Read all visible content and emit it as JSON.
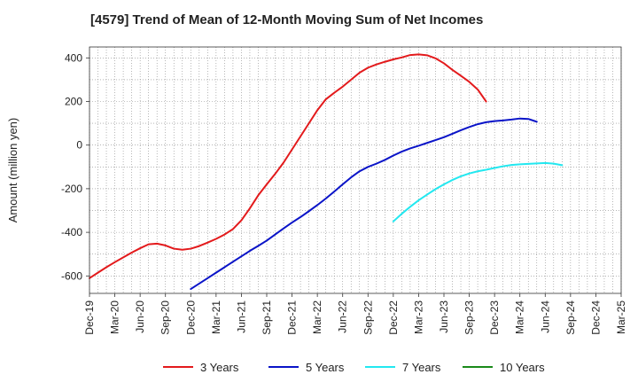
{
  "chart_data": {
    "type": "line",
    "title": "[4579]  Trend of Mean of 12-Month Moving Sum of Net Incomes",
    "xlabel": "",
    "ylabel": "Amount (million yen)",
    "ylim": [
      -680,
      450
    ],
    "yticks": [
      400,
      200,
      0,
      -200,
      -400,
      -600
    ],
    "xtick_labels": [
      "Dec-19",
      "Mar-20",
      "Jun-20",
      "Sep-20",
      "Dec-20",
      "Mar-21",
      "Jun-21",
      "Sep-21",
      "Dec-21",
      "Mar-22",
      "Jun-22",
      "Sep-22",
      "Dec-22",
      "Mar-23",
      "Jun-23",
      "Sep-23",
      "Dec-23",
      "Mar-24",
      "Jun-24",
      "Sep-24",
      "Dec-24",
      "Mar-25"
    ],
    "grid": true,
    "legend_position": "bottom",
    "series": [
      {
        "name": "3 Years",
        "color": "#e31a1c",
        "start_index": 0,
        "values": [
          -610,
          -585,
          -560,
          -537,
          -515,
          -493,
          -473,
          -455,
          -452,
          -460,
          -475,
          -480,
          -475,
          -463,
          -447,
          -430,
          -410,
          -385,
          -345,
          -290,
          -230,
          -180,
          -132,
          -80,
          -20,
          40,
          100,
          160,
          210,
          240,
          268,
          300,
          332,
          355,
          370,
          382,
          393,
          402,
          413,
          416,
          412,
          398,
          375,
          345,
          318,
          290,
          255,
          200
        ]
      },
      {
        "name": "5 Years",
        "color": "#0a14c8",
        "start_index": 12,
        "values": [
          -660,
          -635,
          -610,
          -585,
          -560,
          -535,
          -510,
          -485,
          -462,
          -438,
          -410,
          -382,
          -355,
          -330,
          -303,
          -275,
          -245,
          -213,
          -180,
          -148,
          -120,
          -100,
          -85,
          -68,
          -48,
          -30,
          -15,
          -3,
          10,
          23,
          36,
          52,
          68,
          83,
          96,
          105,
          110,
          113,
          117,
          122,
          120,
          107
        ]
      },
      {
        "name": "7 Years",
        "color": "#22e8f0",
        "start_index": 36,
        "values": [
          -350,
          -315,
          -283,
          -253,
          -227,
          -202,
          -180,
          -160,
          -143,
          -130,
          -120,
          -113,
          -105,
          -97,
          -91,
          -88,
          -86,
          -84,
          -82,
          -85,
          -92
        ]
      },
      {
        "name": "10 Years",
        "color": "#1a8a1a",
        "start_index": 0,
        "values": []
      }
    ]
  }
}
